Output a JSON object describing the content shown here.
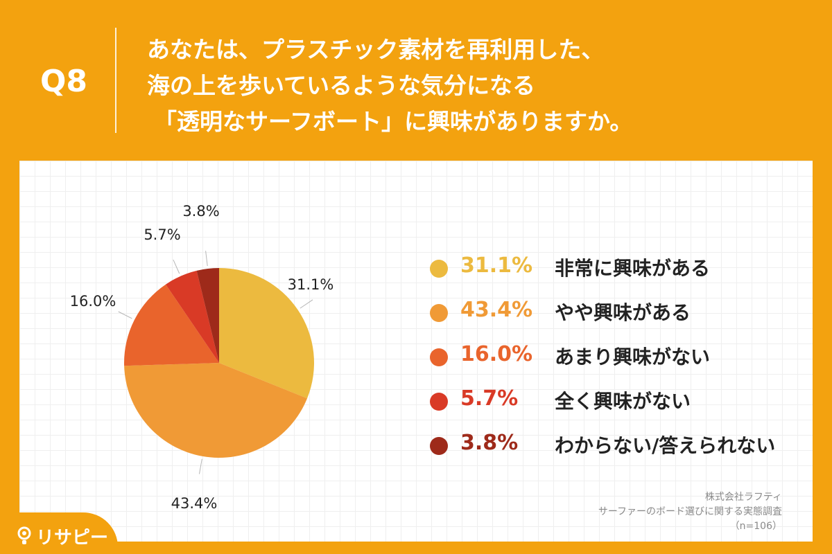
{
  "header": {
    "q_label": "Q8",
    "question_lines": [
      "あなたは、プラスチック素材を再利用した、",
      "海の上を歩いているような気分になる",
      "「透明なサーフボート」に興味がありますか。"
    ]
  },
  "chart_data": {
    "type": "pie",
    "title": "あなたは、プラスチック素材を再利用した、海の上を歩いているような気分になる「透明なサーフボート」に興味がありますか。",
    "categories": [
      "非常に興味がある",
      "やや興味がある",
      "あまり興味がない",
      "全く興味がない",
      "わからない/答えられない"
    ],
    "values": [
      31.1,
      43.4,
      16.0,
      5.7,
      3.8
    ],
    "data_labels": [
      "31.1%",
      "43.4%",
      "16.0%",
      "5.7%",
      "3.8%"
    ],
    "colors": [
      "#ecba3f",
      "#f09a36",
      "#e9642c",
      "#d93a26",
      "#9e2a1a"
    ],
    "start": "12 o'clock, clockwise",
    "legend_position": "right"
  },
  "source": {
    "company": "株式会社ラフティ",
    "survey": "サーファーのボード選びに関する実態調査",
    "sample": "（n=106）"
  },
  "logo": {
    "text": "リサピー"
  }
}
